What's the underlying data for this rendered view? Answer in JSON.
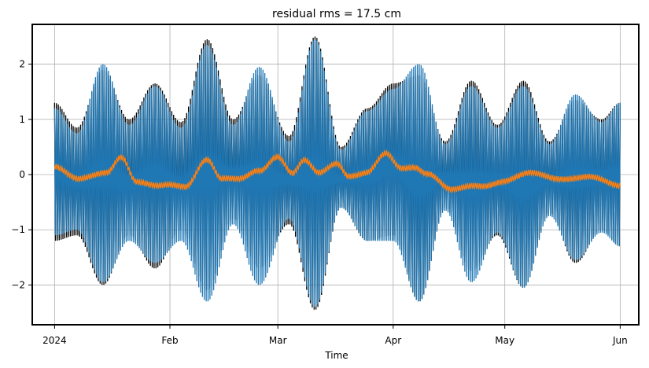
{
  "chart_data": {
    "type": "line",
    "title": "residual rms = 17.5 cm",
    "xlabel": "Time",
    "ylabel": "",
    "x_start": "2024-01-01",
    "x_end": "2024-06-01",
    "xlim": [
      "2023-12-26",
      "2024-06-06"
    ],
    "ylim": [
      -2.72,
      2.72
    ],
    "grid": true,
    "x_ticks": [
      {
        "date": "2024-01-01",
        "label": "2024"
      },
      {
        "date": "2024-02-01",
        "label": "Feb"
      },
      {
        "date": "2024-03-01",
        "label": "Mar"
      },
      {
        "date": "2024-04-01",
        "label": "Apr"
      },
      {
        "date": "2024-05-01",
        "label": "May"
      },
      {
        "date": "2024-06-01",
        "label": "Jun"
      }
    ],
    "y_ticks": [
      {
        "value": 2,
        "label": "2"
      },
      {
        "value": 1,
        "label": "1"
      },
      {
        "value": 0,
        "label": "0"
      },
      {
        "value": -1,
        "label": "−1"
      },
      {
        "value": -2,
        "label": "−2"
      }
    ],
    "series": [
      {
        "color": "#000000",
        "envelope_dates": [
          "2024-01-01",
          "2024-01-07",
          "2024-01-14",
          "2024-01-21",
          "2024-01-28",
          "2024-02-04",
          "2024-02-11",
          "2024-02-18",
          "2024-02-25",
          "2024-03-04",
          "2024-03-11",
          "2024-03-18",
          "2024-03-25",
          "2024-04-01",
          "2024-04-08",
          "2024-04-15",
          "2024-04-22",
          "2024-04-29",
          "2024-05-06",
          "2024-05-13",
          "2024-05-20",
          "2024-05-27",
          "2024-06-01"
        ],
        "upper": [
          1.3,
          0.85,
          1.9,
          1.0,
          1.65,
          0.95,
          2.45,
          1.0,
          1.8,
          0.7,
          2.5,
          0.5,
          1.2,
          1.65,
          1.8,
          0.6,
          1.7,
          0.9,
          1.7,
          0.6,
          1.35,
          1.0,
          1.3
        ],
        "lower": [
          -1.2,
          -1.1,
          -2.0,
          -1.1,
          -1.7,
          -1.0,
          -2.1,
          -0.8,
          -1.7,
          -0.9,
          -2.45,
          -0.6,
          -1.2,
          -1.1,
          -2.3,
          -0.6,
          -1.75,
          -1.1,
          -2.05,
          -0.7,
          -1.6,
          -1.0,
          -1.3
        ]
      },
      {
        "color": "#1f77b4",
        "envelope_dates": [
          "2024-01-01",
          "2024-01-07",
          "2024-01-14",
          "2024-01-21",
          "2024-01-28",
          "2024-02-04",
          "2024-02-11",
          "2024-02-18",
          "2024-02-25",
          "2024-03-04",
          "2024-03-11",
          "2024-03-18",
          "2024-03-25",
          "2024-04-01",
          "2024-04-08",
          "2024-04-15",
          "2024-04-22",
          "2024-04-29",
          "2024-05-06",
          "2024-05-13",
          "2024-05-20",
          "2024-05-27",
          "2024-06-01"
        ],
        "upper": [
          1.2,
          0.75,
          2.0,
          0.9,
          1.6,
          0.85,
          2.35,
          0.9,
          1.95,
          0.6,
          2.45,
          0.45,
          1.15,
          1.55,
          2.0,
          0.55,
          1.6,
          0.85,
          1.6,
          0.55,
          1.45,
          0.95,
          1.3
        ],
        "lower": [
          -1.1,
          -1.0,
          -1.95,
          -1.2,
          -1.6,
          -1.2,
          -2.3,
          -0.9,
          -2.0,
          -0.8,
          -2.4,
          -0.6,
          -1.2,
          -1.2,
          -2.3,
          -0.65,
          -1.95,
          -1.05,
          -2.05,
          -0.75,
          -1.55,
          -1.05,
          -1.3
        ]
      },
      {
        "color": "#ff7f0e",
        "envelope_dates": [
          "2024-01-01",
          "2024-01-08",
          "2024-01-15",
          "2024-01-19",
          "2024-01-23",
          "2024-01-30",
          "2024-02-05",
          "2024-02-11",
          "2024-02-15",
          "2024-02-20",
          "2024-02-25",
          "2024-03-01",
          "2024-03-05",
          "2024-03-08",
          "2024-03-12",
          "2024-03-17",
          "2024-03-20",
          "2024-03-25",
          "2024-03-30",
          "2024-04-03",
          "2024-04-07",
          "2024-04-10",
          "2024-04-17",
          "2024-04-24",
          "2024-05-01",
          "2024-05-08",
          "2024-05-15",
          "2024-05-22",
          "2024-06-01"
        ],
        "center": [
          0.15,
          -0.05,
          0.0,
          0.3,
          -0.1,
          -0.2,
          -0.25,
          0.3,
          -0.05,
          -0.1,
          0.05,
          0.35,
          0.05,
          0.25,
          0.0,
          0.2,
          0.0,
          0.05,
          0.35,
          0.1,
          0.15,
          0.05,
          -0.3,
          -0.2,
          -0.1,
          0.0,
          -0.05,
          -0.05,
          -0.2
        ],
        "noise": 0.09
      }
    ]
  }
}
